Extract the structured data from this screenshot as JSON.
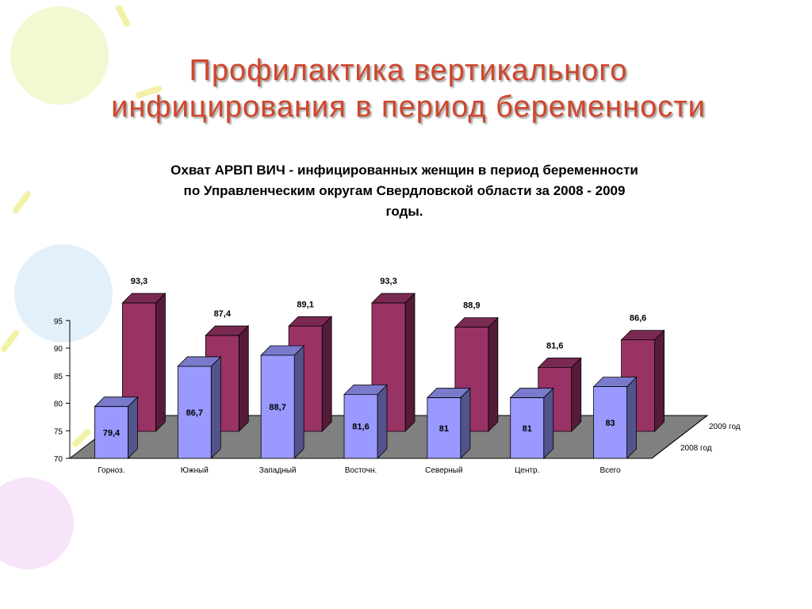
{
  "slide": {
    "title_line1": "Профилактика вертикального",
    "title_line2": "инфицирования в период беременности"
  },
  "chart_data": {
    "type": "bar",
    "title_line1": "Охват АРВП ВИЧ - инфицированных женщин в период беременности",
    "title_line2": "по Управленческим округам Свердловской области за 2008 - 2009",
    "title_line3": "годы.",
    "categories": [
      "Горноз.",
      "Южный",
      "Западный",
      "Восточн.",
      "Северный",
      "Центр.",
      "Всего"
    ],
    "series": [
      {
        "name": "2008 год",
        "values": [
          79.4,
          86.7,
          88.7,
          81.6,
          81,
          81,
          83
        ],
        "labels": [
          "79,4",
          "86,7",
          "88,7",
          "81,6",
          "81",
          "81",
          "83"
        ],
        "color": "#9999ff"
      },
      {
        "name": "2009 год",
        "values": [
          93.3,
          87.4,
          89.1,
          93.3,
          88.9,
          81.6,
          86.6
        ],
        "labels": [
          "93,3",
          "87,4",
          "89,1",
          "93,3",
          "88,9",
          "81,6",
          "86,6"
        ],
        "color": "#993366"
      }
    ],
    "y_ticks": [
      "70",
      "75",
      "80",
      "85",
      "90",
      "95"
    ],
    "ylim": [
      70,
      95
    ],
    "legend": [
      "2009 год",
      "2008 год"
    ],
    "legend_position": "right (depth axis)",
    "floor_color": "#808080",
    "grid": false
  }
}
